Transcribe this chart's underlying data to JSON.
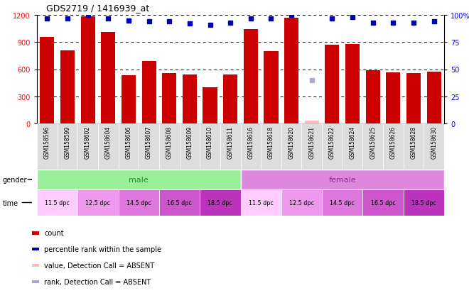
{
  "title": "GDS2719 / 1416939_at",
  "samples": [
    "GSM158596",
    "GSM158599",
    "GSM158602",
    "GSM158604",
    "GSM158606",
    "GSM158607",
    "GSM158608",
    "GSM158609",
    "GSM158610",
    "GSM158611",
    "GSM158616",
    "GSM158618",
    "GSM158620",
    "GSM158621",
    "GSM158622",
    "GSM158624",
    "GSM158625",
    "GSM158626",
    "GSM158628",
    "GSM158630"
  ],
  "bar_values": [
    960,
    810,
    1185,
    1010,
    530,
    690,
    560,
    545,
    400,
    545,
    1040,
    800,
    1170,
    35,
    870,
    880,
    590,
    565,
    560,
    575
  ],
  "bar_absent": [
    false,
    false,
    false,
    false,
    false,
    false,
    false,
    false,
    false,
    false,
    false,
    false,
    false,
    true,
    false,
    false,
    false,
    false,
    false,
    false
  ],
  "percentile_values": [
    97,
    97,
    100,
    97,
    95,
    94,
    94,
    92,
    91,
    93,
    97,
    97,
    100,
    40,
    97,
    98,
    93,
    93,
    93,
    94
  ],
  "percentile_absent": [
    false,
    false,
    false,
    false,
    false,
    false,
    false,
    false,
    false,
    false,
    false,
    false,
    false,
    true,
    false,
    false,
    false,
    false,
    false,
    false
  ],
  "bar_color": "#cc0000",
  "bar_absent_color": "#ffbbbb",
  "percentile_color": "#0000bb",
  "percentile_absent_color": "#aaaacc",
  "male_color": "#99ee99",
  "female_color": "#dd88dd",
  "male_text_color": "#338833",
  "female_text_color": "#883388",
  "time_colors": [
    "#ffccff",
    "#ee99ee",
    "#dd77dd",
    "#cc55cc",
    "#bb33bb"
  ],
  "ylim_left": [
    0,
    1200
  ],
  "ylim_right": [
    0,
    100
  ],
  "yticks_left": [
    0,
    300,
    600,
    900,
    1200
  ],
  "yticks_right": [
    0,
    25,
    50,
    75,
    100
  ],
  "grid_lines": [
    300,
    600,
    900,
    1200
  ],
  "time_labels": [
    "11.5 dpc",
    "12.5 dpc",
    "14.5 dpc",
    "16.5 dpc",
    "18.5 dpc"
  ],
  "legend_items": [
    {
      "label": "count",
      "color": "#cc0000"
    },
    {
      "label": "percentile rank within the sample",
      "color": "#0000bb"
    },
    {
      "label": "value, Detection Call = ABSENT",
      "color": "#ffbbbb"
    },
    {
      "label": "rank, Detection Call = ABSENT",
      "color": "#aaaacc"
    }
  ]
}
